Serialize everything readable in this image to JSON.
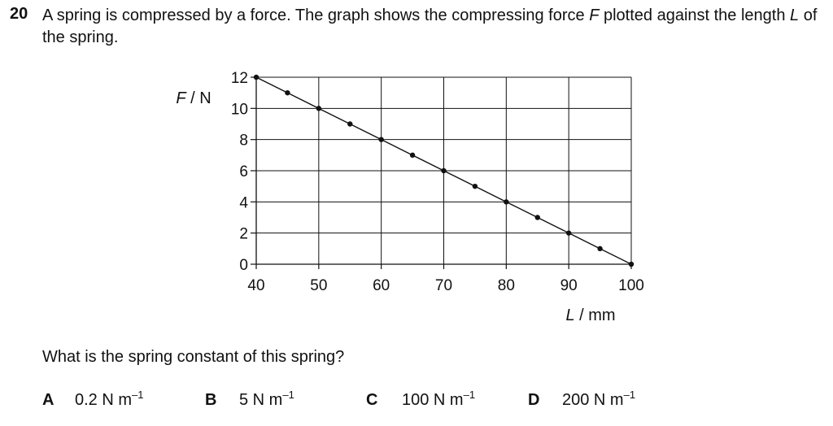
{
  "question": {
    "number": "20",
    "stem_part1": "A spring is compressed by a force. The graph shows the compressing force ",
    "stem_var_F": "F",
    "stem_part2": " plotted against the length ",
    "stem_var_L": "L",
    "stem_part3": " of the spring.",
    "prompt": "What is the spring constant of this spring?"
  },
  "chart_data": {
    "type": "line",
    "x": [
      40,
      45,
      50,
      55,
      60,
      65,
      70,
      75,
      80,
      85,
      90,
      95,
      100
    ],
    "series": [
      {
        "values": [
          12,
          11,
          10,
          9,
          8,
          7,
          6,
          5,
          4,
          3,
          2,
          1,
          0
        ]
      }
    ],
    "xlabel": "L / mm",
    "ylabel": "F / N",
    "xlim": [
      40,
      100
    ],
    "ylim": [
      0,
      12
    ],
    "xticks": [
      "40",
      "50",
      "60",
      "70",
      "80",
      "90",
      "100"
    ],
    "yticks": [
      "0",
      "2",
      "4",
      "6",
      "8",
      "10",
      "12"
    ],
    "grid": true,
    "color": "#111111"
  },
  "options": [
    {
      "letter": "A",
      "value": "0.2 N m",
      "exponent": "–1"
    },
    {
      "letter": "B",
      "value": "5 N m",
      "exponent": "–1"
    },
    {
      "letter": "C",
      "value": "100 N m",
      "exponent": "–1"
    },
    {
      "letter": "D",
      "value": "200 N m",
      "exponent": "–1"
    }
  ]
}
